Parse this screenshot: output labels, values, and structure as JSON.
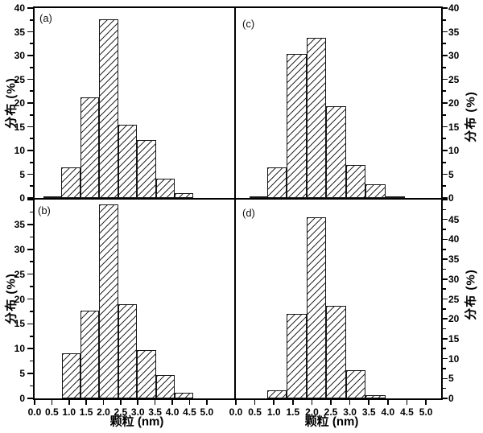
{
  "figure": {
    "background": "#ffffff",
    "axis_color": "#000000",
    "bar_fill": "#ffffff",
    "hatch_color": "#2b2b2b",
    "x_tick_labels": [
      "0.0",
      "0.5",
      "1.0",
      "1.5",
      "2.0",
      "2.5",
      "3.0",
      "3.5",
      "4.0",
      "4.5",
      "5.0"
    ]
  },
  "chart_data": [
    {
      "panel_id": "a",
      "label": "(a)",
      "type": "bar",
      "title": "",
      "xlabel": "",
      "ylabel": "分布 (%)",
      "ylim": [
        0,
        40
      ],
      "xlim": [
        0,
        5.8
      ],
      "y_ticks_labeled": [
        0,
        5,
        10,
        15,
        20,
        25,
        30,
        35,
        40
      ],
      "bins_nm": [
        [
          0.25,
          0.78
        ],
        [
          0.78,
          1.33
        ],
        [
          1.33,
          1.88
        ],
        [
          1.88,
          2.43
        ],
        [
          2.43,
          2.98
        ],
        [
          2.98,
          3.53
        ],
        [
          3.53,
          4.07
        ],
        [
          4.07,
          4.6
        ]
      ],
      "values_pct": [
        0.3,
        6.5,
        21.2,
        37.7,
        15.4,
        12.2,
        4.0,
        1.0
      ]
    },
    {
      "panel_id": "b",
      "label": "(b)",
      "type": "bar",
      "title": "",
      "xlabel": "颗粒 (nm)",
      "ylabel": "分布 (%)",
      "ylim": [
        0,
        40
      ],
      "xlim": [
        0,
        5.8
      ],
      "y_ticks_labeled": [
        0,
        5,
        10,
        15,
        20,
        25,
        30,
        35
      ],
      "bins_nm": [
        [
          0.8,
          1.33
        ],
        [
          1.33,
          1.88
        ],
        [
          1.88,
          2.43
        ],
        [
          2.43,
          2.98
        ],
        [
          2.98,
          3.53
        ],
        [
          3.53,
          4.07
        ],
        [
          4.07,
          4.6
        ]
      ],
      "values_pct": [
        9.0,
        17.6,
        39.0,
        19.0,
        9.7,
        4.7,
        1.2
      ]
    },
    {
      "panel_id": "c",
      "label": "(c)",
      "type": "bar",
      "title": "",
      "xlabel": "",
      "ylabel": "分布 (%)",
      "ylim": [
        0,
        40
      ],
      "xlim": [
        0,
        5.38
      ],
      "y_ticks_labeled": [
        0,
        5,
        10,
        15,
        20,
        25,
        30,
        35,
        40
      ],
      "bins_nm": [
        [
          0.35,
          0.82
        ],
        [
          0.82,
          1.34
        ],
        [
          1.34,
          1.86
        ],
        [
          1.86,
          2.38
        ],
        [
          2.38,
          2.9
        ],
        [
          2.9,
          3.42
        ],
        [
          3.42,
          3.93
        ],
        [
          3.93,
          4.45
        ]
      ],
      "values_pct": [
        0.3,
        6.5,
        30.3,
        33.7,
        19.4,
        6.9,
        2.9,
        0.3
      ]
    },
    {
      "panel_id": "d",
      "label": "(d)",
      "type": "bar",
      "title": "",
      "xlabel": "颗粒 (nm)",
      "ylabel": "分布 (%)",
      "ylim": [
        0,
        50
      ],
      "xlim": [
        0,
        5.38
      ],
      "y_ticks_labeled": [
        0,
        5,
        10,
        15,
        20,
        25,
        30,
        35,
        40,
        45
      ],
      "bins_nm": [
        [
          0.82,
          1.34
        ],
        [
          1.34,
          1.86
        ],
        [
          1.86,
          2.38
        ],
        [
          2.38,
          2.9
        ],
        [
          2.9,
          3.42
        ],
        [
          3.42,
          3.93
        ]
      ],
      "values_pct": [
        2.0,
        21.3,
        45.5,
        23.2,
        7.0,
        0.9
      ]
    }
  ]
}
